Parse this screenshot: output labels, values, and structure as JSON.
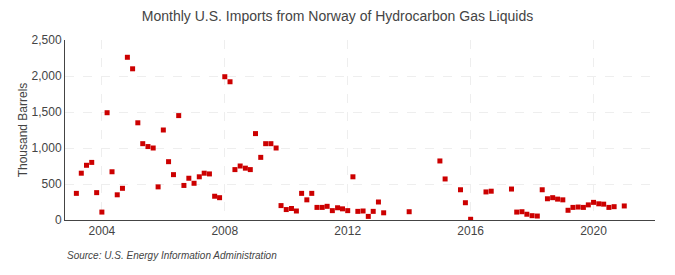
{
  "chart_data": {
    "type": "scatter",
    "title": "Monthly U.S. Imports from Norway of Hydrocarbon Gas Liquids",
    "ylabel": "Thousand Barrels",
    "annotations": [
      "Source: U.S. Energy Information Administration"
    ],
    "color": "#cc0000",
    "marker": "square",
    "grid": true,
    "xlim": [
      2002.8,
      2022.0
    ],
    "xticks": [
      2004,
      2008,
      2012,
      2016,
      2020
    ],
    "ylim": [
      0,
      2500
    ],
    "yticks": [
      0,
      500,
      {
        "value": 1000,
        "label": "1,000"
      },
      {
        "value": 1500,
        "label": "1,500"
      },
      {
        "value": 2000,
        "label": "2,000"
      },
      {
        "value": 2500,
        "label": "2,500"
      }
    ],
    "x": [
      2003.17,
      2003.33,
      2003.5,
      2003.67,
      2003.83,
      2004.0,
      2004.17,
      2004.33,
      2004.5,
      2004.67,
      2004.83,
      2005.0,
      2005.17,
      2005.33,
      2005.5,
      2005.67,
      2005.83,
      2006.0,
      2006.17,
      2006.33,
      2006.5,
      2006.67,
      2006.83,
      2007.0,
      2007.17,
      2007.33,
      2007.5,
      2007.67,
      2007.83,
      2008.0,
      2008.17,
      2008.33,
      2008.5,
      2008.67,
      2008.83,
      2009.0,
      2009.17,
      2009.33,
      2009.5,
      2009.67,
      2009.83,
      2010.0,
      2010.17,
      2010.33,
      2010.5,
      2010.67,
      2010.83,
      2011.0,
      2011.17,
      2011.33,
      2011.5,
      2011.67,
      2011.83,
      2012.0,
      2012.17,
      2012.33,
      2012.5,
      2012.67,
      2012.83,
      2013.0,
      2013.17,
      2014.0,
      2015.0,
      2015.17,
      2015.67,
      2015.83,
      2016.0,
      2016.5,
      2016.67,
      2017.33,
      2017.5,
      2017.67,
      2017.83,
      2018.0,
      2018.17,
      2018.33,
      2018.5,
      2018.67,
      2018.83,
      2019.0,
      2019.17,
      2019.33,
      2019.5,
      2019.67,
      2019.83,
      2020.0,
      2020.17,
      2020.33,
      2020.5,
      2020.67,
      2021.0
    ],
    "values": [
      370,
      650,
      760,
      800,
      380,
      110,
      1490,
      670,
      350,
      440,
      2260,
      2100,
      1350,
      1060,
      1020,
      1000,
      460,
      1250,
      810,
      630,
      1450,
      480,
      580,
      510,
      600,
      650,
      640,
      330,
      310,
      1990,
      1920,
      700,
      750,
      720,
      700,
      1200,
      870,
      1060,
      1060,
      1000,
      200,
      145,
      160,
      125,
      370,
      280,
      370,
      175,
      175,
      190,
      130,
      170,
      155,
      130,
      600,
      120,
      125,
      50,
      120,
      250,
      100,
      115,
      820,
      570,
      420,
      240,
      10,
      390,
      400,
      430,
      110,
      115,
      80,
      60,
      55,
      420,
      295,
      310,
      290,
      280,
      135,
      175,
      180,
      175,
      210,
      245,
      225,
      220,
      175,
      185,
      195
    ]
  }
}
